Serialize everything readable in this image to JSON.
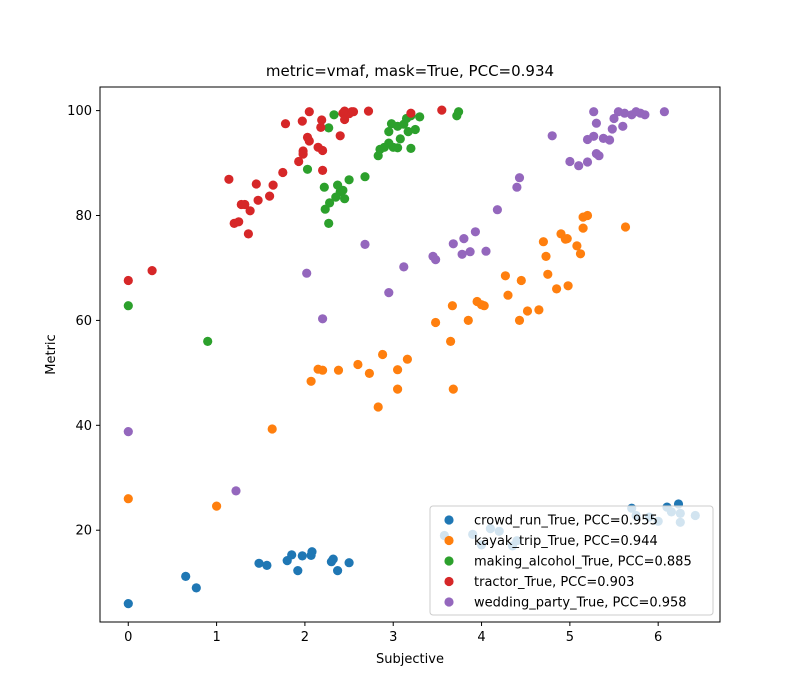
{
  "chart_data": {
    "type": "scatter",
    "title": "metric=vmaf, mask=True, PCC=0.934",
    "xlabel": "Subjective",
    "ylabel": "Metric",
    "xlim": [
      -0.32,
      6.7
    ],
    "ylim": [
      2.5,
      104.5
    ],
    "xticks": [
      0,
      1,
      2,
      3,
      4,
      5,
      6
    ],
    "yticks": [
      20,
      40,
      60,
      80,
      100
    ],
    "grid": false,
    "legend": "lower-right",
    "series": [
      {
        "name": "crowd_run_True, PCC=0.955",
        "color": "#1f77b4",
        "points": [
          [
            0,
            6
          ],
          [
            0.65,
            11.2
          ],
          [
            0.77,
            9
          ],
          [
            1.48,
            13.7
          ],
          [
            1.57,
            13.3
          ],
          [
            1.8,
            14.2
          ],
          [
            1.85,
            15.3
          ],
          [
            1.92,
            12.3
          ],
          [
            1.97,
            15.1
          ],
          [
            2.07,
            15.2
          ],
          [
            2.08,
            15.9
          ],
          [
            2.3,
            14
          ],
          [
            2.32,
            14.5
          ],
          [
            2.37,
            12.3
          ],
          [
            2.5,
            13.8
          ],
          [
            3.58,
            19
          ],
          [
            3.9,
            19.2
          ],
          [
            4,
            17.2
          ],
          [
            4.1,
            20.3
          ],
          [
            4.2,
            19.8
          ],
          [
            4.35,
            17
          ],
          [
            4.4,
            18
          ],
          [
            5.7,
            24.2
          ],
          [
            5.75,
            22.8
          ],
          [
            5.9,
            22.5
          ],
          [
            6,
            21.7
          ],
          [
            6.1,
            24.4
          ],
          [
            6.15,
            23.5
          ],
          [
            6.23,
            25
          ],
          [
            6.25,
            21.5
          ],
          [
            6.25,
            23.2
          ],
          [
            6.42,
            22.8
          ]
        ]
      },
      {
        "name": "kayak_trip_True, PCC=0.944",
        "color": "#ff7f0e",
        "points": [
          [
            0,
            26
          ],
          [
            1,
            24.6
          ],
          [
            1.63,
            39.3
          ],
          [
            2.07,
            48.4
          ],
          [
            2.15,
            50.7
          ],
          [
            2.2,
            50.5
          ],
          [
            2.38,
            50.5
          ],
          [
            2.6,
            51.6
          ],
          [
            2.73,
            49.9
          ],
          [
            2.83,
            43.5
          ],
          [
            2.88,
            53.5
          ],
          [
            3.05,
            46.9
          ],
          [
            3.05,
            50.6
          ],
          [
            3.16,
            52.6
          ],
          [
            3.48,
            59.6
          ],
          [
            3.65,
            56
          ],
          [
            3.67,
            62.8
          ],
          [
            3.68,
            46.9
          ],
          [
            3.85,
            60
          ],
          [
            3.95,
            63.6
          ],
          [
            4,
            63
          ],
          [
            4.03,
            62.8
          ],
          [
            4.27,
            68.5
          ],
          [
            4.3,
            64.8
          ],
          [
            4.43,
            60
          ],
          [
            4.45,
            67.6
          ],
          [
            4.52,
            61.8
          ],
          [
            4.65,
            62
          ],
          [
            4.7,
            75
          ],
          [
            4.73,
            72.2
          ],
          [
            4.75,
            68.8
          ],
          [
            4.85,
            66
          ],
          [
            4.9,
            76.5
          ],
          [
            4.95,
            75.5
          ],
          [
            4.97,
            75.6
          ],
          [
            4.98,
            66.6
          ],
          [
            5.08,
            74.2
          ],
          [
            5.12,
            72.7
          ],
          [
            5.15,
            77.6
          ],
          [
            5.15,
            79.7
          ],
          [
            5.2,
            80
          ],
          [
            5.63,
            77.8
          ]
        ]
      },
      {
        "name": "making_alcohol_True, PCC=0.885",
        "color": "#2ca02c",
        "points": [
          [
            0,
            62.8
          ],
          [
            0.9,
            56
          ],
          [
            2.03,
            88.8
          ],
          [
            2.22,
            85.4
          ],
          [
            2.23,
            81.2
          ],
          [
            2.27,
            96.7
          ],
          [
            2.27,
            78.5
          ],
          [
            2.28,
            82.4
          ],
          [
            2.33,
            99.2
          ],
          [
            2.35,
            83.5
          ],
          [
            2.37,
            85.8
          ],
          [
            2.4,
            84.5
          ],
          [
            2.43,
            84.8
          ],
          [
            2.45,
            83.2
          ],
          [
            2.5,
            86.8
          ],
          [
            2.68,
            87.4
          ],
          [
            2.83,
            91.4
          ],
          [
            2.85,
            92.6
          ],
          [
            2.9,
            93
          ],
          [
            2.95,
            96
          ],
          [
            2.95,
            93.8
          ],
          [
            2.98,
            97.5
          ],
          [
            3,
            93
          ],
          [
            3.05,
            92.9
          ],
          [
            3.05,
            97
          ],
          [
            3.08,
            94.6
          ],
          [
            3.12,
            97.4
          ],
          [
            3.15,
            98.5
          ],
          [
            3.17,
            96
          ],
          [
            3.2,
            92.8
          ],
          [
            3.2,
            99
          ],
          [
            3.25,
            96.4
          ],
          [
            3.3,
            98.8
          ],
          [
            3.72,
            99
          ],
          [
            3.74,
            99.8
          ]
        ]
      },
      {
        "name": "tractor_True, PCC=0.903",
        "color": "#d62728",
        "points": [
          [
            0,
            67.6
          ],
          [
            0.27,
            69.5
          ],
          [
            1.14,
            86.9
          ],
          [
            1.2,
            78.5
          ],
          [
            1.25,
            78.8
          ],
          [
            1.28,
            82.1
          ],
          [
            1.32,
            82.1
          ],
          [
            1.36,
            76.5
          ],
          [
            1.38,
            80.9
          ],
          [
            1.45,
            86
          ],
          [
            1.47,
            82.9
          ],
          [
            1.6,
            83.7
          ],
          [
            1.64,
            85.8
          ],
          [
            1.75,
            88.2
          ],
          [
            1.78,
            97.5
          ],
          [
            1.93,
            90.3
          ],
          [
            1.97,
            98
          ],
          [
            1.98,
            92.3
          ],
          [
            1.98,
            91.7
          ],
          [
            2.03,
            94.9
          ],
          [
            2.05,
            99.8
          ],
          [
            2.05,
            94.2
          ],
          [
            2.15,
            93
          ],
          [
            2.18,
            96.8
          ],
          [
            2.19,
            98.2
          ],
          [
            2.2,
            92.4
          ],
          [
            2.2,
            88.6
          ],
          [
            2.4,
            95.2
          ],
          [
            2.43,
            99.5
          ],
          [
            2.45,
            98.3
          ],
          [
            2.45,
            99.9
          ],
          [
            2.5,
            99.4
          ],
          [
            2.53,
            99.8
          ],
          [
            2.55,
            99.8
          ],
          [
            2.72,
            99.9
          ],
          [
            3.2,
            99.5
          ],
          [
            3.55,
            100.1
          ]
        ]
      },
      {
        "name": "wedding_party_True, PCC=0.958",
        "color": "#9467bd",
        "points": [
          [
            0,
            38.8
          ],
          [
            1.22,
            27.5
          ],
          [
            2.02,
            69
          ],
          [
            2.2,
            60.3
          ],
          [
            2.68,
            74.5
          ],
          [
            2.95,
            65.3
          ],
          [
            3.12,
            70.2
          ],
          [
            3.45,
            72.2
          ],
          [
            3.48,
            71.6
          ],
          [
            3.68,
            74.6
          ],
          [
            3.78,
            72.6
          ],
          [
            3.8,
            75.6
          ],
          [
            3.87,
            73.1
          ],
          [
            3.93,
            76.9
          ],
          [
            4.05,
            73.2
          ],
          [
            4.18,
            81.1
          ],
          [
            4.4,
            85.4
          ],
          [
            4.43,
            87.2
          ],
          [
            4.8,
            95.2
          ],
          [
            5,
            90.3
          ],
          [
            5.1,
            89.5
          ],
          [
            5.2,
            90.2
          ],
          [
            5.2,
            94.5
          ],
          [
            5.27,
            99.8
          ],
          [
            5.27,
            95.1
          ],
          [
            5.3,
            91.8
          ],
          [
            5.3,
            97.6
          ],
          [
            5.33,
            91.4
          ],
          [
            5.38,
            94.7
          ],
          [
            5.45,
            94.4
          ],
          [
            5.48,
            96.5
          ],
          [
            5.5,
            98.5
          ],
          [
            5.55,
            99.8
          ],
          [
            5.6,
            97
          ],
          [
            5.62,
            99.5
          ],
          [
            5.7,
            99.2
          ],
          [
            5.75,
            99.8
          ],
          [
            5.8,
            99.5
          ],
          [
            5.85,
            99.2
          ],
          [
            6.07,
            99.8
          ]
        ]
      }
    ]
  }
}
